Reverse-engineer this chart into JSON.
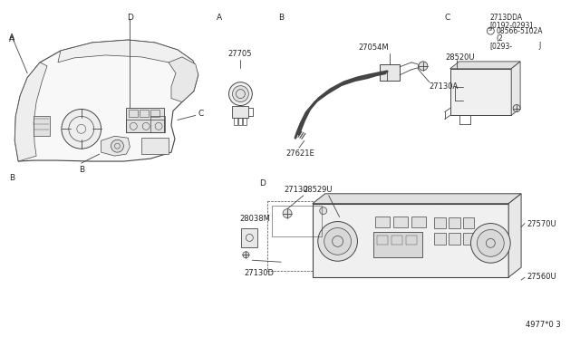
{
  "background_color": "#ffffff",
  "figure_width": 6.4,
  "figure_height": 3.72,
  "dpi": 100,
  "ec": "#444444",
  "tc": "#222222",
  "parts": {
    "part_27705": "27705",
    "part_27054M": "27054M",
    "part_27130A": "27130A",
    "part_27621E": "27621E",
    "part_27130DA": "2713DDA",
    "part_0192": "[0192-0293]",
    "part_08566": "08566-5102A",
    "part_2": "(2",
    "part_0293": "[0293-",
    "part_J": "J",
    "part_28520U": "28520U",
    "part_28529U": "28529U",
    "part_27570U": "27570U",
    "part_27560U": "27560U",
    "part_28038M": "28038M",
    "part_27130": "27130",
    "part_27130D": "27130D",
    "watermark": "4977*0 3"
  }
}
